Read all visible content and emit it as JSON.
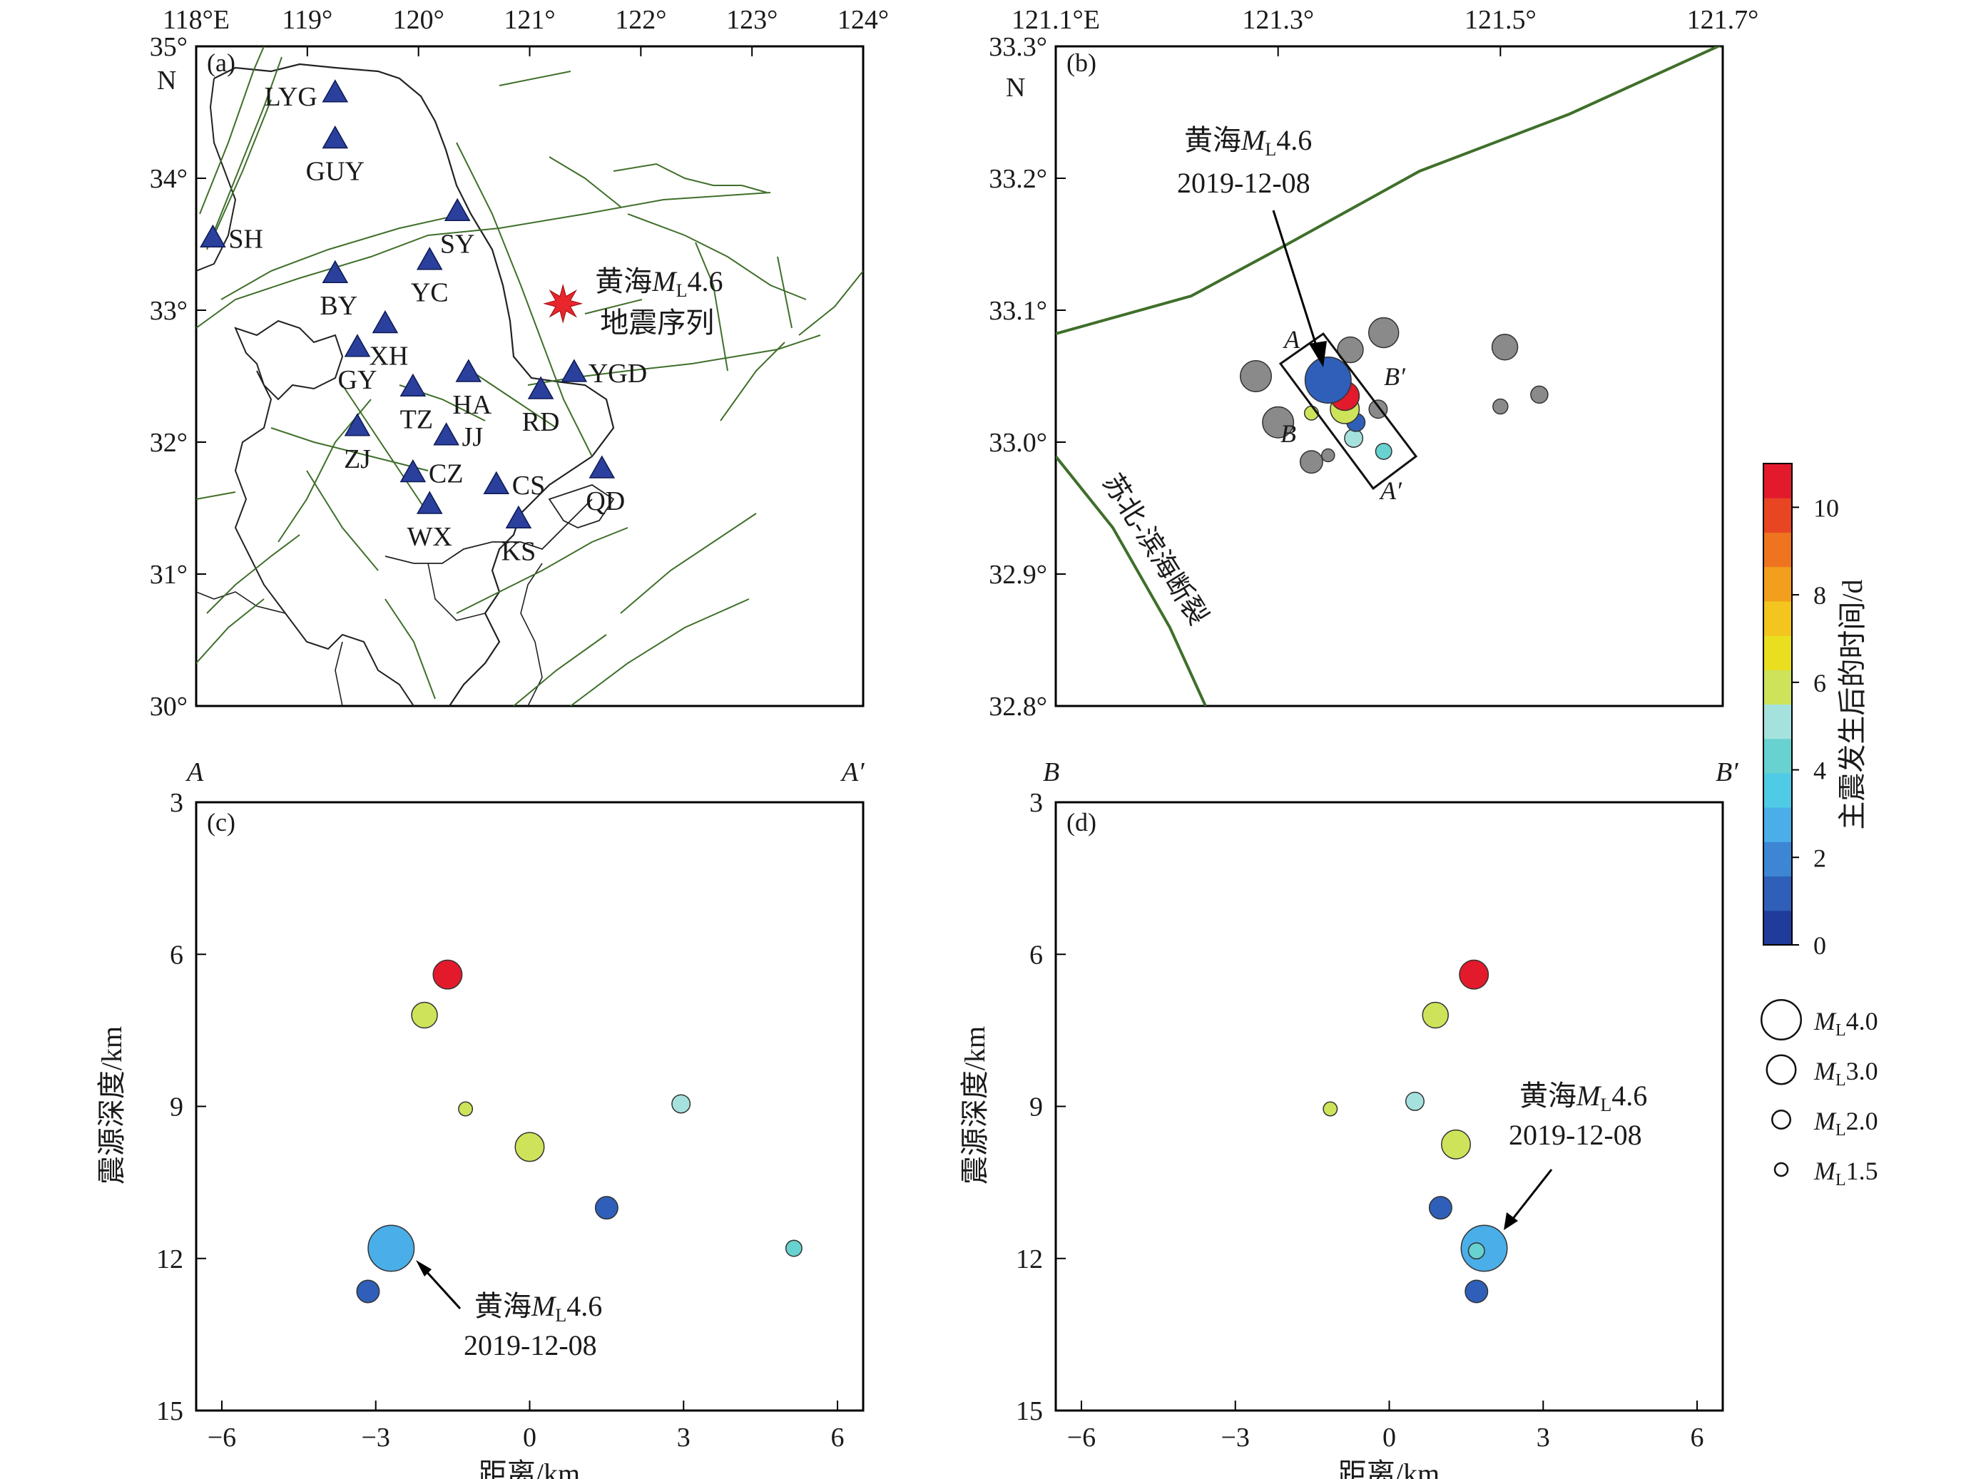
{
  "chart_data": [
    {
      "panel": "a",
      "type": "map",
      "label": "(a)",
      "x_ticks": [
        "118°E",
        "119°",
        "120°",
        "121°",
        "122°",
        "123°",
        "124°"
      ],
      "y_ticks": [
        "35°",
        "34°",
        "33°",
        "32°",
        "31°",
        "30°"
      ],
      "y_unit": "N",
      "xlim": [
        118,
        124
      ],
      "ylim": [
        30,
        35
      ],
      "stations": [
        {
          "name": "LYG",
          "lon": 119.25,
          "lat": 34.65
        },
        {
          "name": "GUY",
          "lon": 119.25,
          "lat": 34.3
        },
        {
          "name": "SH",
          "lon": 118.15,
          "lat": 33.55
        },
        {
          "name": "SY",
          "lon": 120.35,
          "lat": 33.75
        },
        {
          "name": "BY",
          "lon": 119.25,
          "lat": 33.28
        },
        {
          "name": "YC",
          "lon": 120.1,
          "lat": 33.38
        },
        {
          "name": "XH",
          "lon": 119.7,
          "lat": 32.9
        },
        {
          "name": "GY",
          "lon": 119.45,
          "lat": 32.72
        },
        {
          "name": "HA",
          "lon": 120.45,
          "lat": 32.53
        },
        {
          "name": "YGD",
          "lon": 121.4,
          "lat": 32.53
        },
        {
          "name": "TZ",
          "lon": 119.95,
          "lat": 32.42
        },
        {
          "name": "RD",
          "lon": 121.1,
          "lat": 32.4
        },
        {
          "name": "ZJ",
          "lon": 119.45,
          "lat": 32.12
        },
        {
          "name": "JJ",
          "lon": 120.25,
          "lat": 32.05
        },
        {
          "name": "CZ",
          "lon": 119.95,
          "lat": 31.77
        },
        {
          "name": "CS",
          "lon": 120.7,
          "lat": 31.68
        },
        {
          "name": "QD",
          "lon": 121.65,
          "lat": 31.8
        },
        {
          "name": "WX",
          "lon": 120.1,
          "lat": 31.53
        },
        {
          "name": "KS",
          "lon": 120.9,
          "lat": 31.42
        }
      ],
      "event": {
        "lon": 121.3,
        "lat": 33.05,
        "label_line1_pre": "黄海",
        "label_mag": "4.6",
        "label_line2": "地震序列"
      }
    },
    {
      "panel": "b",
      "type": "scatter",
      "label": "(b)",
      "x_ticks": [
        "121.1°E",
        "121.3°",
        "121.5°",
        "121.7°"
      ],
      "y_ticks": [
        "33.3°",
        "33.2°",
        "33.1°",
        "33.0°",
        "32.9°",
        "32.8°"
      ],
      "y_unit": "N",
      "xlim": [
        121.1,
        121.7
      ],
      "ylim": [
        32.8,
        33.3
      ],
      "fault_label": "苏北-滨海断裂",
      "annotation": {
        "line1_pre": "黄海",
        "mag": "4.6",
        "date": "2019-12-08"
      },
      "profile_labels": {
        "A": "A",
        "A_prime": "A′",
        "B": "B",
        "B_prime": "B′"
      },
      "gray_events": [
        {
          "lon": 121.28,
          "lat": 33.05,
          "ml": 3.2
        },
        {
          "lon": 121.3,
          "lat": 33.015,
          "ml": 3.2
        },
        {
          "lon": 121.365,
          "lat": 33.07,
          "ml": 2.7
        },
        {
          "lon": 121.395,
          "lat": 33.083,
          "ml": 3.1
        },
        {
          "lon": 121.33,
          "lat": 32.985,
          "ml": 2.4
        },
        {
          "lon": 121.345,
          "lat": 32.99,
          "ml": 1.5
        },
        {
          "lon": 121.39,
          "lat": 33.025,
          "ml": 2.0
        },
        {
          "lon": 121.504,
          "lat": 33.072,
          "ml": 2.7
        },
        {
          "lon": 121.535,
          "lat": 33.036,
          "ml": 1.9
        },
        {
          "lon": 121.5,
          "lat": 33.027,
          "ml": 1.7
        }
      ],
      "colored_events": [
        {
          "lon": 121.345,
          "lat": 33.047,
          "ml": 4.6,
          "days": 1.5
        },
        {
          "lon": 121.36,
          "lat": 33.035,
          "ml": 3.0,
          "days": 10.5
        },
        {
          "lon": 121.36,
          "lat": 33.025,
          "ml": 3.0,
          "days": 6.0
        },
        {
          "lon": 121.33,
          "lat": 33.022,
          "ml": 1.6,
          "days": 6.2
        },
        {
          "lon": 121.37,
          "lat": 33.015,
          "ml": 2.0,
          "days": 1.0
        },
        {
          "lon": 121.368,
          "lat": 33.003,
          "ml": 2.0,
          "days": 4.8
        },
        {
          "lon": 121.395,
          "lat": 32.993,
          "ml": 1.8,
          "days": 4.2
        }
      ]
    },
    {
      "panel": "c",
      "type": "scatter",
      "label": "(c)",
      "profile_start": "A",
      "profile_end": "A′",
      "xlabel": "距离/km",
      "ylabel": "震源深度/km",
      "x_ticks": [
        -6,
        -3,
        0,
        3,
        6
      ],
      "y_ticks": [
        3,
        6,
        9,
        12,
        15
      ],
      "xlim": [
        -6.5,
        6.5
      ],
      "ylim": [
        3,
        15
      ],
      "annotation": {
        "line1_pre": "黄海",
        "mag": "4.6",
        "date": "2019-12-08"
      },
      "points": [
        {
          "x": -1.6,
          "y": 6.4,
          "ml": 3.0,
          "days": 10.5
        },
        {
          "x": -2.05,
          "y": 7.2,
          "ml": 2.7,
          "days": 6.0
        },
        {
          "x": -1.25,
          "y": 9.05,
          "ml": 1.6,
          "days": 6.2
        },
        {
          "x": 0.0,
          "y": 9.8,
          "ml": 3.0,
          "days": 6.0
        },
        {
          "x": 2.95,
          "y": 8.95,
          "ml": 2.0,
          "days": 4.8
        },
        {
          "x": 1.5,
          "y": 11.0,
          "ml": 2.4,
          "days": 1.0
        },
        {
          "x": -2.7,
          "y": 11.8,
          "ml": 4.6,
          "days": 2.5
        },
        {
          "x": -3.15,
          "y": 12.65,
          "ml": 2.4,
          "days": 1.0
        },
        {
          "x": 5.15,
          "y": 11.8,
          "ml": 1.8,
          "days": 4.2
        }
      ]
    },
    {
      "panel": "d",
      "type": "scatter",
      "label": "(d)",
      "profile_start": "B",
      "profile_end": "B′",
      "xlabel": "距离/km",
      "ylabel": "震源深度/km",
      "x_ticks": [
        -6,
        -3,
        0,
        3,
        6
      ],
      "y_ticks": [
        3,
        6,
        9,
        12,
        15
      ],
      "xlim": [
        -6.5,
        6.5
      ],
      "ylim": [
        3,
        15
      ],
      "annotation": {
        "line1_pre": "黄海",
        "mag": "4.6",
        "date": "2019-12-08"
      },
      "points": [
        {
          "x": 1.65,
          "y": 6.4,
          "ml": 3.0,
          "days": 10.5
        },
        {
          "x": 0.9,
          "y": 7.2,
          "ml": 2.7,
          "days": 6.0
        },
        {
          "x": -1.15,
          "y": 9.05,
          "ml": 1.6,
          "days": 6.2
        },
        {
          "x": 0.5,
          "y": 8.9,
          "ml": 2.0,
          "days": 4.8
        },
        {
          "x": 1.3,
          "y": 9.75,
          "ml": 3.0,
          "days": 6.0
        },
        {
          "x": 1.0,
          "y": 11.0,
          "ml": 2.4,
          "days": 1.0
        },
        {
          "x": 1.85,
          "y": 11.8,
          "ml": 4.6,
          "days": 2.5
        },
        {
          "x": 1.7,
          "y": 11.85,
          "ml": 1.8,
          "days": 4.2
        },
        {
          "x": 1.7,
          "y": 12.65,
          "ml": 2.4,
          "days": 1.0
        }
      ]
    }
  ],
  "colorbar": {
    "label": "主震发生后的时间/d",
    "ticks": [
      0,
      2,
      4,
      6,
      8,
      10
    ],
    "range": [
      0,
      11
    ],
    "colors": [
      "#1f3c9a",
      "#2f5fb8",
      "#3c86d4",
      "#4aaee8",
      "#4fcbe6",
      "#67d2cf",
      "#a6e2dd",
      "#cfe35a",
      "#eadf1e",
      "#f3c51e",
      "#f29f1d",
      "#ee7420",
      "#e84522",
      "#e31a2c"
    ]
  },
  "size_legend": [
    {
      "label": "4.0",
      "ml": 4.0
    },
    {
      "label": "3.0",
      "ml": 3.0
    },
    {
      "label": "2.0",
      "ml": 2.0
    },
    {
      "label": "1.5",
      "ml": 1.5
    }
  ],
  "mag_symbol": "M",
  "mag_subscript": "L",
  "grays": {
    "fill": "#8a8a8a",
    "fault": "#3f6f2a"
  }
}
